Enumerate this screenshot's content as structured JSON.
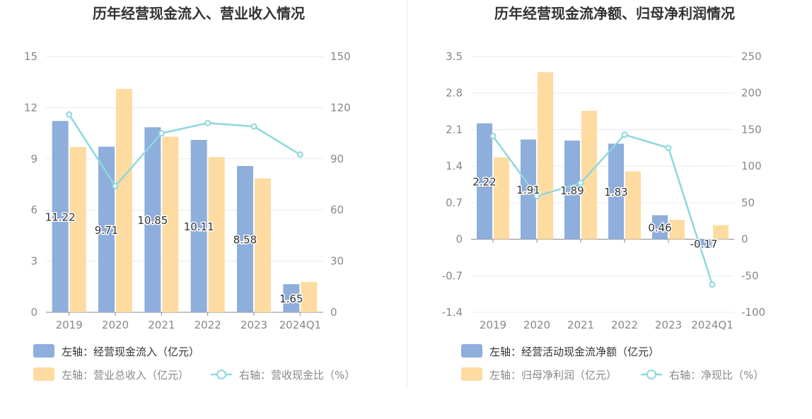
{
  "chart_data": [
    {
      "type": "bar",
      "title": "历年经营现金流入、营业收入情况",
      "categories": [
        "2019",
        "2020",
        "2021",
        "2022",
        "2023",
        "2024Q1"
      ],
      "left_axis": {
        "min": 0,
        "max": 15,
        "ticks": [
          "0",
          "3",
          "6",
          "9",
          "12",
          "15"
        ]
      },
      "right_axis": {
        "min": 0,
        "max": 150,
        "ticks": [
          "0",
          "30",
          "60",
          "90",
          "120",
          "150"
        ]
      },
      "series": [
        {
          "name": "左轴：经营现金流入（亿元）",
          "kind": "bar",
          "axis": "left",
          "color": "#8eaedc",
          "values": [
            11.22,
            9.71,
            10.85,
            10.11,
            8.58,
            1.65
          ],
          "labels": [
            "11.22",
            "9.71",
            "10.85",
            "10.11",
            "8.58",
            "1.65"
          ]
        },
        {
          "name": "左轴：营业总收入（亿元）",
          "kind": "bar",
          "axis": "left",
          "color": "#fedba0",
          "values": [
            9.7,
            13.1,
            10.3,
            9.1,
            7.85,
            1.78
          ]
        },
        {
          "name": "右轴：营收现金比（%）",
          "kind": "line",
          "axis": "right",
          "color": "#8dd8dc",
          "values": [
            116,
            74,
            105,
            111,
            109,
            92.5
          ]
        }
      ],
      "legend": "bottom-left",
      "grid": true
    },
    {
      "type": "bar",
      "title": "历年经营现金流净额、归母净利润情况",
      "categories": [
        "2019",
        "2020",
        "2021",
        "2022",
        "2023",
        "2024Q1"
      ],
      "left_axis": {
        "min": -1.4,
        "max": 3.5,
        "ticks": [
          "-1.4",
          "-0.7",
          "0",
          "0.7",
          "1.4",
          "2.1",
          "2.8",
          "3.5"
        ]
      },
      "right_axis": {
        "min": -100,
        "max": 250,
        "ticks": [
          "-100",
          "-50",
          "0",
          "50",
          "100",
          "150",
          "200",
          "250"
        ]
      },
      "series": [
        {
          "name": "左轴：经营活动现金流净额（亿元）",
          "kind": "bar",
          "axis": "left",
          "color": "#8eaedc",
          "values": [
            2.22,
            1.91,
            1.89,
            1.83,
            0.46,
            -0.17
          ],
          "labels": [
            "2.22",
            "1.91",
            "1.89",
            "1.83",
            "0.46",
            "-0.17"
          ]
        },
        {
          "name": "左轴：归母净利润（亿元）",
          "kind": "bar",
          "axis": "left",
          "color": "#fedba0",
          "values": [
            1.57,
            3.2,
            2.46,
            1.3,
            0.37,
            0.27
          ]
        },
        {
          "name": "右轴：净现比（%）",
          "kind": "line",
          "axis": "right",
          "color": "#8dd8dc",
          "values": [
            141,
            59,
            77,
            143,
            125,
            -62
          ]
        }
      ],
      "legend": "bottom-left",
      "grid": true
    }
  ]
}
